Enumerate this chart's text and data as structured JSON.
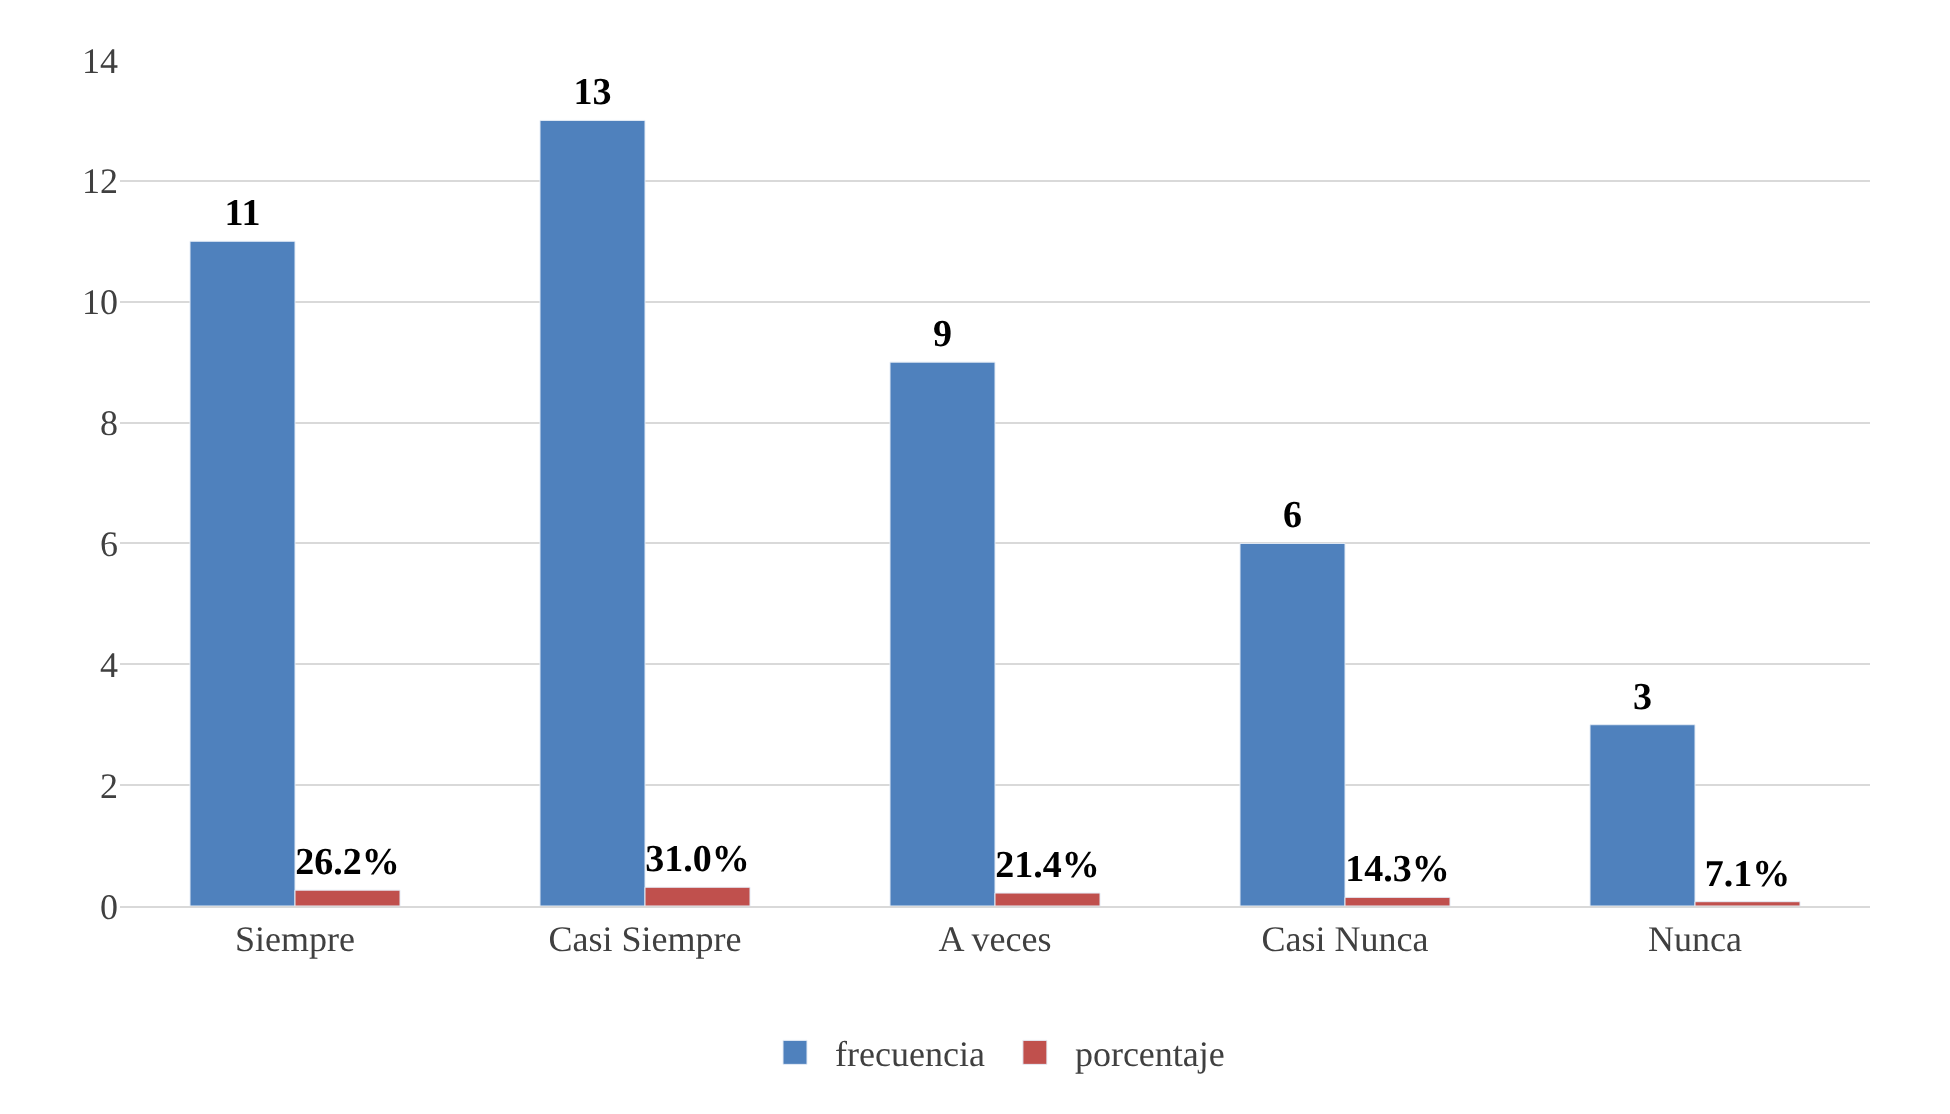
{
  "chart_data": {
    "type": "bar",
    "categories": [
      "Siempre",
      "Casi Siempre",
      "A veces",
      "Casi Nunca",
      "Nunca"
    ],
    "series": [
      {
        "name": "frecuencia",
        "color": "#4f81bd",
        "values": [
          11,
          13,
          9,
          6,
          3
        ],
        "value_labels": [
          "11",
          "13",
          "9",
          "6",
          "3"
        ]
      },
      {
        "name": "porcentaje",
        "color": "#c0504d",
        "values": [
          0.262,
          0.31,
          0.214,
          0.143,
          0.071
        ],
        "value_labels": [
          "26.2%",
          "31.0%",
          "21.4%",
          "14.3%",
          "7.1%"
        ]
      }
    ],
    "ylim": [
      0,
      14
    ],
    "yticks": [
      0,
      2,
      4,
      6,
      8,
      10,
      12,
      14
    ],
    "grid": "y",
    "legend": "bottom"
  }
}
